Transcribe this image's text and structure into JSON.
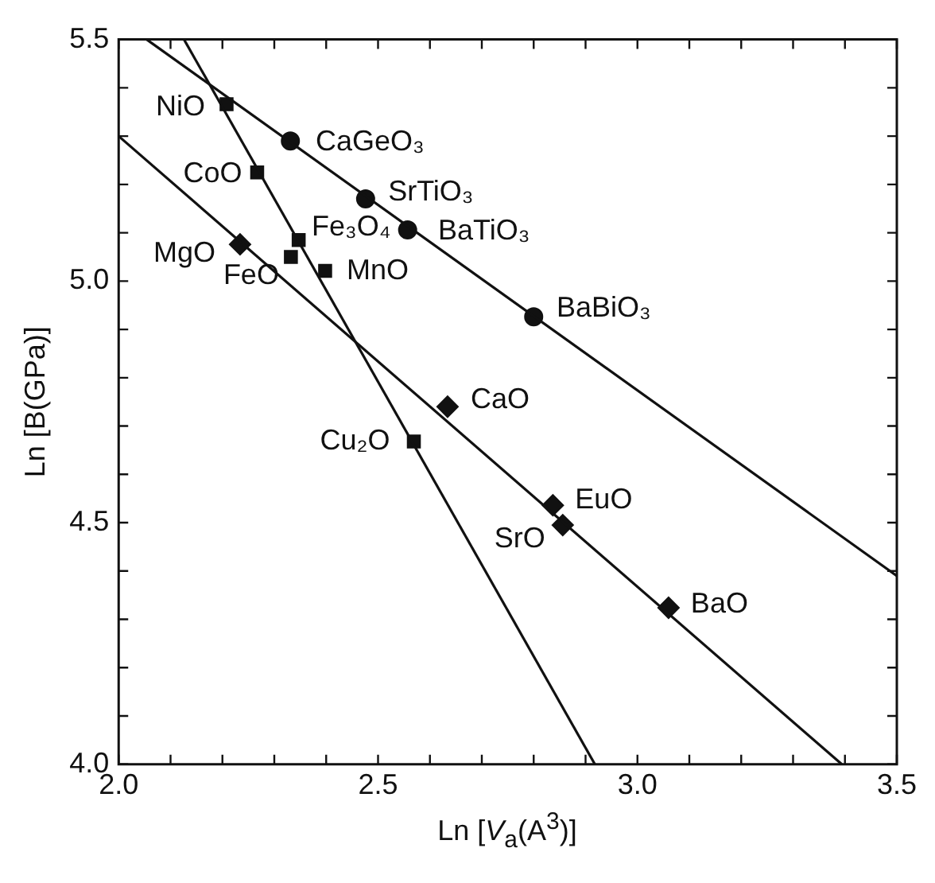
{
  "chart_data": {
    "type": "scatter",
    "xlabel": "Ln [V$_{a}$(A$^{3}$)]",
    "ylabel": "Ln [B(GPa)]",
    "xlim": [
      2.0,
      3.5
    ],
    "ylim": [
      4.0,
      5.5
    ],
    "xticks": [
      {
        "value": 2.0,
        "label": "2.0"
      },
      {
        "value": 2.1,
        "label": null
      },
      {
        "value": 2.2,
        "label": null
      },
      {
        "value": 2.3,
        "label": null
      },
      {
        "value": 2.4,
        "label": null
      },
      {
        "value": 2.5,
        "label": "2.5"
      },
      {
        "value": 2.6,
        "label": null
      },
      {
        "value": 2.7,
        "label": null
      },
      {
        "value": 2.8,
        "label": null
      },
      {
        "value": 2.9,
        "label": null
      },
      {
        "value": 3.0,
        "label": "3.0"
      },
      {
        "value": 3.1,
        "label": null
      },
      {
        "value": 3.2,
        "label": null
      },
      {
        "value": 3.3,
        "label": null
      },
      {
        "value": 3.4,
        "label": null
      },
      {
        "value": 3.5,
        "label": "3.5"
      }
    ],
    "yticks": [
      {
        "value": 4.0,
        "label": "4.0"
      },
      {
        "value": 4.1,
        "label": null
      },
      {
        "value": 4.2,
        "label": null
      },
      {
        "value": 4.3,
        "label": null
      },
      {
        "value": 4.4,
        "label": null
      },
      {
        "value": 4.5,
        "label": "4.5"
      },
      {
        "value": 4.6,
        "label": null
      },
      {
        "value": 4.7,
        "label": null
      },
      {
        "value": 4.8,
        "label": null
      },
      {
        "value": 4.9,
        "label": null
      },
      {
        "value": 5.0,
        "label": "5.0"
      },
      {
        "value": 5.1,
        "label": null
      },
      {
        "value": 5.2,
        "label": null
      },
      {
        "value": 5.3,
        "label": null
      },
      {
        "value": 5.4,
        "label": null
      },
      {
        "value": 5.5,
        "label": "5.5"
      }
    ],
    "grid": false,
    "legend": false,
    "series": [
      {
        "type": "line",
        "color": "#111111",
        "marker": "none",
        "line_style": "solid",
        "x": [
          2.054,
          3.5
        ],
        "values": [
          5.5,
          4.39
        ]
      },
      {
        "type": "line",
        "color": "#111111",
        "marker": "none",
        "line_style": "solid",
        "x": [
          2.126,
          2.918
        ],
        "values": [
          5.5,
          4.0
        ]
      },
      {
        "type": "line",
        "color": "#111111",
        "marker": "none",
        "line_style": "solid",
        "x": [
          2.0,
          3.394
        ],
        "values": [
          5.3,
          4.0
        ]
      },
      {
        "color": "#111111",
        "marker": "circle",
        "x": [
          2.331,
          2.476,
          2.557,
          2.8
        ],
        "values": [
          5.29,
          5.17,
          5.106,
          4.926
        ]
      },
      {
        "color": "#111111",
        "marker": "square",
        "x": [
          2.208,
          2.267,
          2.347,
          2.332,
          2.398,
          2.569
        ],
        "values": [
          5.366,
          5.225,
          5.085,
          5.05,
          5.021,
          4.668
        ]
      },
      {
        "color": "#111111",
        "marker": "diamond",
        "x": [
          2.234,
          2.634,
          2.837,
          2.856,
          3.06
        ],
        "values": [
          5.076,
          4.74,
          4.536,
          4.495,
          4.324
        ]
      }
    ],
    "annotations": [
      {
        "text": "NiO",
        "x": 2.208,
        "y": 5.366
      },
      {
        "text": "CaGeO₃",
        "x": 2.331,
        "y": 5.29
      },
      {
        "text": "CoO",
        "x": 2.267,
        "y": 5.225
      },
      {
        "text": "SrTiO₃",
        "x": 2.476,
        "y": 5.17
      },
      {
        "text": "BaTiO₃",
        "x": 2.557,
        "y": 5.106
      },
      {
        "text": "Fe₃O₄",
        "x": 2.347,
        "y": 5.085
      },
      {
        "text": "MgO",
        "x": 2.234,
        "y": 5.076
      },
      {
        "text": "FeO",
        "x": 2.332,
        "y": 5.05
      },
      {
        "text": "MnO",
        "x": 2.398,
        "y": 5.021
      },
      {
        "text": "BaBiO₃",
        "x": 2.8,
        "y": 4.926
      },
      {
        "text": "CaO",
        "x": 2.634,
        "y": 4.74
      },
      {
        "text": "Cu₂O",
        "x": 2.569,
        "y": 4.668
      },
      {
        "text": "EuO",
        "x": 2.837,
        "y": 4.536
      },
      {
        "text": "SrO",
        "x": 2.856,
        "y": 4.495
      },
      {
        "text": "BaO",
        "x": 3.06,
        "y": 4.324
      }
    ]
  }
}
